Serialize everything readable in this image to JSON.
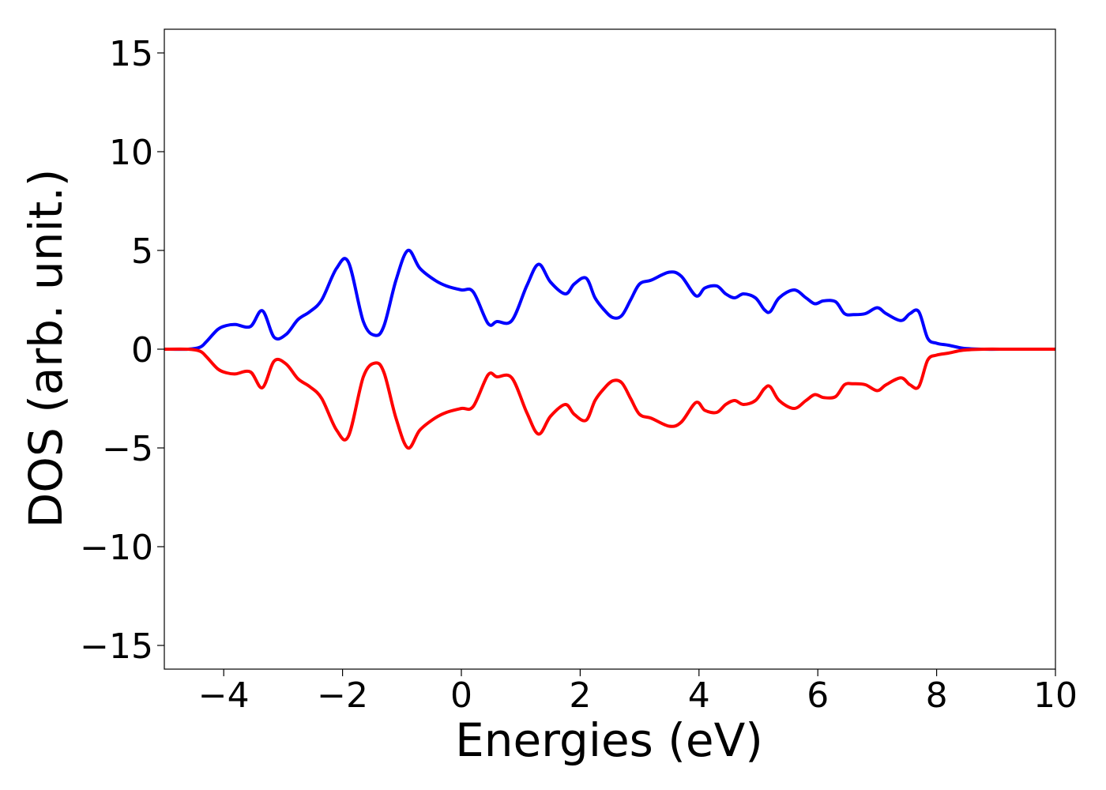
{
  "chart_data": {
    "type": "line",
    "title": "",
    "xlabel": "Energies (eV)",
    "ylabel": "DOS (arb. unit.)",
    "xlim": [
      -5,
      10
    ],
    "ylim": [
      -16.2,
      16.2
    ],
    "x_ticks": [
      -4,
      -2,
      0,
      2,
      4,
      6,
      8,
      10
    ],
    "x_tick_labels": [
      "−4",
      "−2",
      "0",
      "2",
      "4",
      "6",
      "8",
      "10"
    ],
    "y_ticks": [
      15,
      10,
      5,
      0,
      -5,
      -10,
      -15
    ],
    "y_tick_labels": [
      "15",
      "10",
      "5",
      "0",
      "−5",
      "−10",
      "−15"
    ],
    "grid": false,
    "x": [
      -5.0,
      -4.6,
      -4.4,
      -4.3,
      -4.1,
      -3.95,
      -3.8,
      -3.55,
      -3.35,
      -3.15,
      -2.95,
      -2.75,
      -2.55,
      -2.35,
      -2.1,
      -1.9,
      -1.65,
      -1.45,
      -1.3,
      -1.1,
      -0.9,
      -0.7,
      -0.45,
      -0.25,
      0.0,
      0.2,
      0.45,
      0.6,
      0.85,
      1.1,
      1.3,
      1.5,
      1.75,
      1.9,
      2.1,
      2.25,
      2.4,
      2.55,
      2.7,
      2.85,
      3.0,
      3.2,
      3.5,
      3.7,
      3.95,
      4.1,
      4.3,
      4.45,
      4.6,
      4.75,
      4.95,
      5.1,
      5.2,
      5.35,
      5.6,
      5.8,
      5.95,
      6.1,
      6.3,
      6.45,
      6.6,
      6.8,
      7.0,
      7.15,
      7.4,
      7.55,
      7.7,
      7.85,
      8.0,
      8.2,
      8.45,
      8.8,
      9.2,
      9.6,
      10.0
    ],
    "series": [
      {
        "color": "#0000ff",
        "values": [
          0.0,
          0.0,
          0.1,
          0.35,
          1.0,
          1.2,
          1.25,
          1.15,
          1.95,
          0.6,
          0.75,
          1.5,
          1.9,
          2.5,
          4.1,
          4.4,
          1.4,
          0.7,
          1.2,
          3.5,
          5.0,
          4.1,
          3.5,
          3.2,
          3.0,
          2.9,
          1.3,
          1.4,
          1.45,
          3.2,
          4.3,
          3.4,
          2.8,
          3.3,
          3.6,
          2.6,
          2.0,
          1.6,
          1.7,
          2.5,
          3.3,
          3.5,
          3.9,
          3.7,
          2.7,
          3.1,
          3.2,
          2.8,
          2.6,
          2.8,
          2.6,
          2.0,
          1.9,
          2.6,
          3.0,
          2.6,
          2.3,
          2.45,
          2.4,
          1.8,
          1.75,
          1.8,
          2.1,
          1.8,
          1.45,
          1.8,
          1.9,
          0.55,
          0.3,
          0.2,
          0.05,
          0.0,
          0.0,
          0.0,
          0.0
        ]
      },
      {
        "color": "#ff0000",
        "values": [
          0.0,
          0.0,
          -0.1,
          -0.35,
          -1.0,
          -1.2,
          -1.25,
          -1.15,
          -1.95,
          -0.6,
          -0.75,
          -1.5,
          -1.9,
          -2.5,
          -4.1,
          -4.4,
          -1.4,
          -0.7,
          -1.2,
          -3.5,
          -5.0,
          -4.1,
          -3.5,
          -3.2,
          -3.0,
          -2.9,
          -1.3,
          -1.4,
          -1.45,
          -3.2,
          -4.3,
          -3.4,
          -2.8,
          -3.3,
          -3.6,
          -2.6,
          -2.0,
          -1.6,
          -1.7,
          -2.5,
          -3.3,
          -3.5,
          -3.9,
          -3.7,
          -2.7,
          -3.1,
          -3.2,
          -2.8,
          -2.6,
          -2.8,
          -2.6,
          -2.0,
          -1.9,
          -2.6,
          -3.0,
          -2.6,
          -2.3,
          -2.45,
          -2.4,
          -1.8,
          -1.75,
          -1.8,
          -2.1,
          -1.8,
          -1.45,
          -1.8,
          -1.9,
          -0.55,
          -0.3,
          -0.2,
          -0.05,
          0.0,
          0.0,
          0.0,
          0.0
        ]
      }
    ]
  }
}
